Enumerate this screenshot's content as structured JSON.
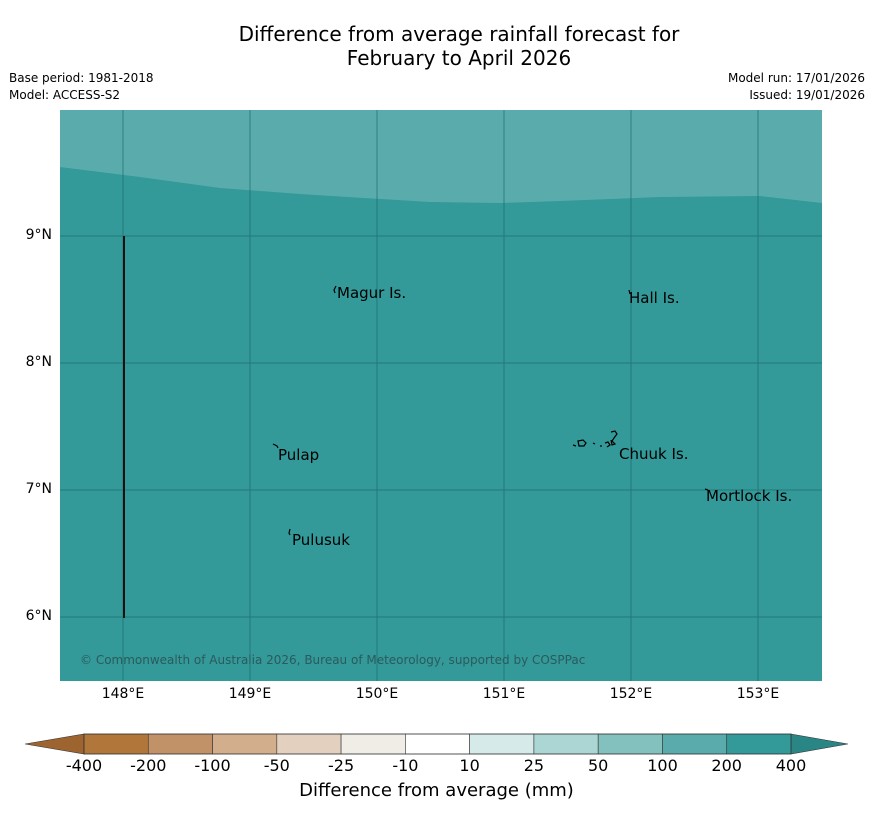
{
  "title": {
    "line1": "Difference from average rainfall forecast for",
    "line2": "February to April 2026"
  },
  "meta": {
    "base_period": "Base period: 1981-2018",
    "model": "Model: ACCESS-S2",
    "model_run": "Model run: 17/01/2026",
    "issued": "Issued: 19/01/2026"
  },
  "map": {
    "places": [
      "Magur Is.",
      "Hall Is.",
      "Pulap",
      "Chuuk Is.",
      "Mortlock Is.",
      "Pulusuk"
    ],
    "latitude_labels": [
      "9°N",
      "8°N",
      "7°N",
      "6°N"
    ],
    "longitude_labels": [
      "148°E",
      "149°E",
      "150°E",
      "151°E",
      "152°E",
      "153°E"
    ],
    "copyright": "© Commonwealth of Australia 2026, Bureau of Meteorology, supported by COSPPac"
  },
  "colorbar": {
    "ticks": [
      "-400",
      "-200",
      "-100",
      "-50",
      "-25",
      "-10",
      "10",
      "25",
      "50",
      "100",
      "200",
      "400"
    ],
    "colors": [
      "#b0763a",
      "#c19167",
      "#d2ae8c",
      "#e3d0bf",
      "#f0ede7",
      "#ffffff",
      "#d6ebe9",
      "#acd6d4",
      "#83c1bf",
      "#5aacac",
      "#339999"
    ],
    "under_color": "#9e6430",
    "over_color": "#2a8585",
    "label": "Difference from average (mm)"
  }
}
